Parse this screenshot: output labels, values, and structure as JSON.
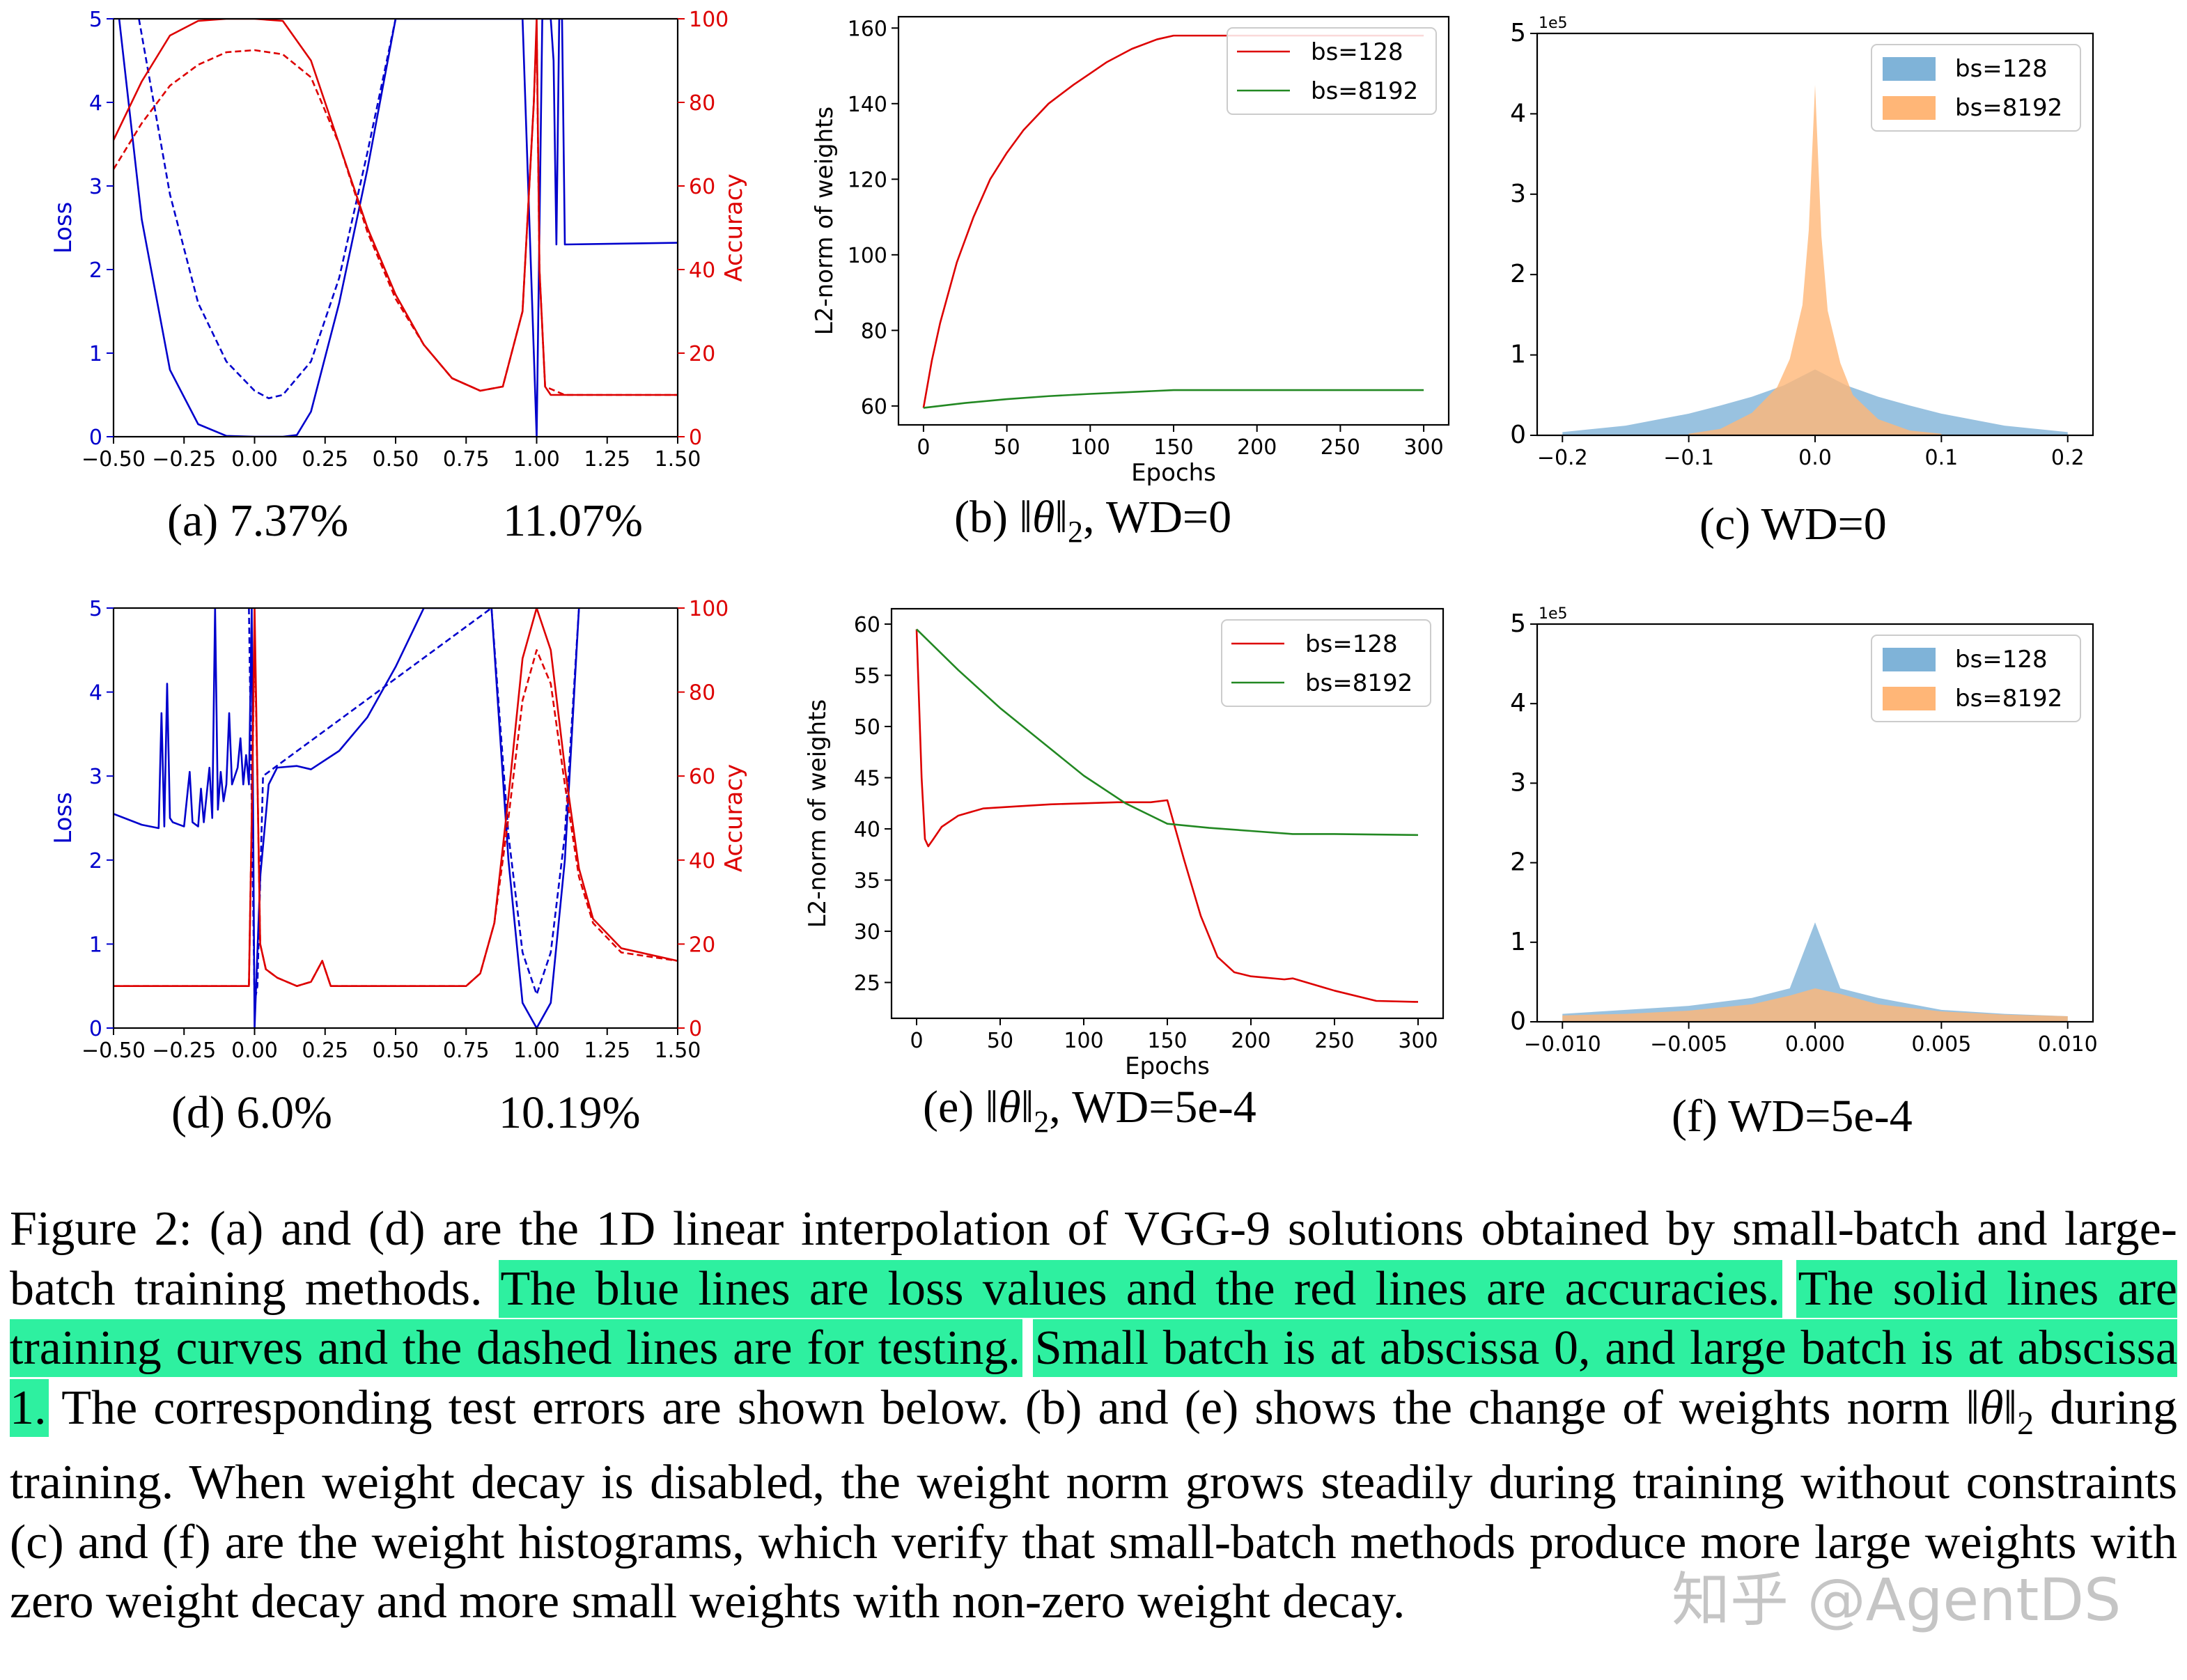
{
  "figure": {
    "panels": {
      "a": {
        "label": "(a) 7.37%",
        "label_left": "(a)",
        "err_small": "7.37%",
        "err_large": "11.07%"
      },
      "b": {
        "label": "(b) ||θ||₂, WD=0",
        "prefix": "(b)",
        "math": "‖θ‖",
        "sub": "2",
        "suffix": ", WD=0"
      },
      "c": {
        "label": "(c) WD=0"
      },
      "d": {
        "label": "(d) 6.0%",
        "label_left": "(d)",
        "err_small": "6.0%",
        "err_large": "10.19%"
      },
      "e": {
        "label": "(e) ||θ||₂, WD=5e-4",
        "prefix": "(e)",
        "math": "‖θ‖",
        "sub": "2",
        "suffix": ", WD=5e-4"
      },
      "f": {
        "label": "(f) WD=5e-4"
      }
    },
    "caption": {
      "p1": "Figure 2: (a) and (d) are the 1D linear interpolation of VGG-9 solutions obtained by small-batch and large-batch training methods. ",
      "h1": "The blue lines are loss values and the red lines are accuracies.",
      "sp1": " ",
      "h2": "The solid lines are training curves and the dashed lines are for testing.",
      "sp2": " ",
      "h3": "Small batch is at abscissa 0, and large batch is at abscissa 1.",
      "p2": " The corresponding test errors are shown below. (b) and (e) shows the change of weights norm ",
      "norm": "‖θ‖",
      "norm_sub": "2",
      "p3": " during training. When weight decay is disabled, the weight norm grows steadily during training without constraints (c) and (f) are the weight histograms, which verify that small-batch methods produce more large weights with zero weight decay and more small weights with non-zero weight decay."
    },
    "watermark": "知乎 @AgentDS"
  },
  "chart_data": [
    {
      "id": "a",
      "type": "line",
      "title": "(a) 7.37%   11.07%",
      "xlabel": "",
      "ylabel": "Loss",
      "ylabel_right": "Accuracy",
      "xlim": [
        -0.5,
        1.5
      ],
      "ylim": [
        0,
        5
      ],
      "ylim_right": [
        0,
        100
      ],
      "xticks": [
        "-0.50",
        "-0.25",
        "0.00",
        "0.25",
        "0.50",
        "0.75",
        "1.00",
        "1.25",
        "1.50"
      ],
      "yticks": [
        "0",
        "1",
        "2",
        "3",
        "4",
        "5"
      ],
      "yticks_right": [
        "0",
        "20",
        "40",
        "60",
        "80",
        "100"
      ],
      "series": [
        {
          "name": "train loss",
          "color": "#0000cc",
          "style": "solid",
          "axis": "left",
          "x": [
            -0.48,
            -0.4,
            -0.3,
            -0.2,
            -0.1,
            0.0,
            0.1,
            0.15,
            0.2,
            0.3,
            0.4,
            0.5,
            0.95,
            0.98,
            1.0,
            1.02,
            1.05,
            1.06,
            1.07,
            1.08,
            1.09,
            1.1,
            1.5
          ],
          "y": [
            5.0,
            2.6,
            0.8,
            0.15,
            0.01,
            0.0,
            0.0,
            0.02,
            0.3,
            1.6,
            3.2,
            5.0,
            5.0,
            2.0,
            0.0,
            5.0,
            5.0,
            4.5,
            2.3,
            5.0,
            5.0,
            2.3,
            2.32
          ]
        },
        {
          "name": "test loss",
          "color": "#0000cc",
          "style": "dashed",
          "axis": "left",
          "x": [
            -0.41,
            -0.3,
            -0.2,
            -0.1,
            0.0,
            0.05,
            0.1,
            0.2,
            0.3,
            0.4,
            0.5
          ],
          "y": [
            5.0,
            2.9,
            1.6,
            0.9,
            0.55,
            0.46,
            0.5,
            0.9,
            1.9,
            3.4,
            5.0
          ]
        },
        {
          "name": "train accuracy",
          "color": "#dd0000",
          "style": "solid",
          "axis": "right",
          "x": [
            -0.5,
            -0.4,
            -0.3,
            -0.2,
            -0.1,
            0.0,
            0.1,
            0.2,
            0.3,
            0.4,
            0.5,
            0.6,
            0.7,
            0.8,
            0.88,
            0.95,
            0.99,
            1.0,
            1.01,
            1.03,
            1.05,
            1.1,
            1.5
          ],
          "y": [
            71,
            85,
            96,
            99.5,
            100,
            100,
            99.5,
            90,
            70,
            50,
            34,
            22,
            14,
            11,
            12,
            30,
            80,
            100,
            40,
            12,
            10,
            10,
            10
          ]
        },
        {
          "name": "test accuracy",
          "color": "#dd0000",
          "style": "dashed",
          "axis": "right",
          "x": [
            -0.5,
            -0.4,
            -0.3,
            -0.2,
            -0.1,
            0.0,
            0.1,
            0.2,
            0.3,
            0.4,
            0.5,
            0.6,
            0.7,
            0.8,
            0.88,
            0.95,
            0.99,
            1.0,
            1.01,
            1.03,
            1.1,
            1.5
          ],
          "y": [
            64,
            75,
            84,
            89,
            92,
            92.5,
            91.5,
            86,
            70,
            49,
            33,
            22,
            14,
            11,
            12,
            30,
            80,
            98,
            40,
            12,
            10,
            10
          ]
        }
      ]
    },
    {
      "id": "b",
      "type": "line",
      "title": "(b) ||θ||₂, WD=0",
      "xlabel": "Epochs",
      "ylabel": "L2-norm of weights",
      "xlim": [
        -15,
        315
      ],
      "ylim": [
        55,
        163
      ],
      "xticks": [
        "0",
        "50",
        "100",
        "150",
        "200",
        "250",
        "300"
      ],
      "yticks": [
        "60",
        "80",
        "100",
        "120",
        "140",
        "160"
      ],
      "legend": [
        "bs=128",
        "bs=8192"
      ],
      "legend_position": "upper right",
      "series": [
        {
          "name": "bs=128",
          "color": "#dd0000",
          "x": [
            0,
            5,
            10,
            20,
            30,
            40,
            50,
            60,
            75,
            90,
            100,
            110,
            125,
            140,
            150,
            300
          ],
          "y": [
            59.5,
            72,
            82,
            98,
            110,
            120,
            127,
            133,
            140,
            145,
            148,
            151,
            154.5,
            157,
            158,
            158
          ]
        },
        {
          "name": "bs=8192",
          "color": "#228822",
          "x": [
            0,
            25,
            50,
            75,
            100,
            125,
            150,
            300
          ],
          "y": [
            59.5,
            60.8,
            61.8,
            62.6,
            63.2,
            63.7,
            64.2,
            64.2
          ]
        }
      ]
    },
    {
      "id": "c",
      "type": "bar",
      "title": "(c) WD=0",
      "xlabel": "",
      "ylabel": "",
      "y_scale_label": "1e5",
      "xlim": [
        -0.22,
        0.22
      ],
      "ylim": [
        0,
        5
      ],
      "xticks": [
        "-0.2",
        "-0.1",
        "0.0",
        "0.1",
        "0.2"
      ],
      "yticks": [
        "0",
        "1",
        "2",
        "3",
        "4",
        "5"
      ],
      "legend": [
        "bs=128",
        "bs=8192"
      ],
      "legend_position": "upper right",
      "series": [
        {
          "name": "bs=128",
          "color": "#7fb3d8",
          "x": [
            -0.2,
            -0.15,
            -0.1,
            -0.075,
            -0.05,
            -0.025,
            0.0,
            0.025,
            0.05,
            0.075,
            0.1,
            0.15,
            0.2
          ],
          "values": [
            0.04,
            0.12,
            0.27,
            0.37,
            0.48,
            0.62,
            0.82,
            0.62,
            0.48,
            0.37,
            0.27,
            0.12,
            0.04
          ]
        },
        {
          "name": "bs=8192",
          "color": "#ffb677",
          "x": [
            -0.1,
            -0.075,
            -0.05,
            -0.03,
            -0.02,
            -0.01,
            -0.005,
            0.0,
            0.005,
            0.01,
            0.02,
            0.03,
            0.05,
            0.075,
            0.1
          ],
          "values": [
            0.02,
            0.08,
            0.28,
            0.6,
            0.95,
            1.62,
            2.55,
            4.36,
            2.48,
            1.55,
            0.9,
            0.5,
            0.2,
            0.06,
            0.02
          ]
        }
      ]
    },
    {
      "id": "d",
      "type": "line",
      "title": "(d) 6.0%   10.19%",
      "xlabel": "",
      "ylabel": "Loss",
      "ylabel_right": "Accuracy",
      "xlim": [
        -0.5,
        1.5
      ],
      "ylim": [
        0,
        5
      ],
      "ylim_right": [
        0,
        100
      ],
      "xticks": [
        "-0.50",
        "-0.25",
        "0.00",
        "0.25",
        "0.50",
        "0.75",
        "1.00",
        "1.25",
        "1.50"
      ],
      "yticks": [
        "0",
        "1",
        "2",
        "3",
        "4",
        "5"
      ],
      "yticks_right": [
        "0",
        "20",
        "40",
        "60",
        "80",
        "100"
      ],
      "series": [
        {
          "name": "train loss",
          "color": "#0000cc",
          "style": "solid",
          "axis": "left",
          "x": [
            -0.5,
            -0.4,
            -0.34,
            -0.33,
            -0.32,
            -0.31,
            -0.3,
            -0.29,
            -0.25,
            -0.23,
            -0.22,
            -0.2,
            -0.19,
            -0.18,
            -0.16,
            -0.15,
            -0.14,
            -0.13,
            -0.12,
            -0.11,
            -0.1,
            -0.09,
            -0.08,
            -0.06,
            -0.05,
            -0.04,
            -0.03,
            -0.02,
            -0.01,
            0.0,
            0.02,
            0.05,
            0.08,
            0.15,
            0.2,
            0.3,
            0.4,
            0.5,
            0.6,
            0.84,
            0.9,
            0.95,
            1.0,
            1.05,
            1.1,
            1.15
          ],
          "y": [
            2.55,
            2.42,
            2.38,
            3.75,
            2.4,
            4.1,
            2.5,
            2.45,
            2.4,
            3.05,
            2.45,
            2.4,
            2.85,
            2.45,
            3.1,
            2.5,
            5.0,
            2.6,
            3.05,
            2.7,
            2.9,
            3.75,
            2.9,
            3.1,
            3.45,
            2.9,
            3.25,
            2.9,
            5.0,
            0.0,
            1.8,
            2.9,
            3.1,
            3.12,
            3.08,
            3.3,
            3.7,
            4.3,
            5.0,
            5.0,
            2.0,
            0.3,
            0.0,
            0.3,
            2.0,
            5.0
          ]
        },
        {
          "name": "test loss",
          "color": "#0000cc",
          "style": "dashed",
          "axis": "left",
          "x": [
            -0.02,
            0.0,
            0.01,
            0.03,
            0.84,
            0.9,
            0.95,
            1.0,
            1.05,
            1.1,
            1.15
          ],
          "y": [
            5.0,
            0.3,
            0.5,
            3.0,
            5.0,
            2.3,
            0.9,
            0.4,
            0.9,
            2.3,
            5.0
          ]
        },
        {
          "name": "train accuracy",
          "color": "#dd0000",
          "style": "solid",
          "axis": "right",
          "x": [
            -0.5,
            -0.02,
            -0.01,
            0.0,
            0.01,
            0.02,
            0.04,
            0.08,
            0.15,
            0.2,
            0.24,
            0.27,
            0.3,
            0.5,
            0.75,
            0.8,
            0.85,
            0.9,
            0.95,
            1.0,
            1.05,
            1.1,
            1.15,
            1.2,
            1.3,
            1.5
          ],
          "y": [
            10,
            10,
            50,
            100,
            60,
            20,
            14,
            12,
            10,
            11,
            16,
            10,
            10,
            10,
            10,
            13,
            25,
            55,
            88,
            100,
            90,
            62,
            38,
            26,
            19,
            16
          ]
        },
        {
          "name": "test accuracy",
          "color": "#dd0000",
          "style": "dashed",
          "axis": "right",
          "x": [
            -0.5,
            -0.02,
            -0.01,
            0.0,
            0.01,
            0.02,
            0.04,
            0.08,
            0.15,
            0.2,
            0.24,
            0.27,
            0.3,
            0.5,
            0.75,
            0.8,
            0.85,
            0.9,
            0.95,
            1.0,
            1.05,
            1.1,
            1.15,
            1.2,
            1.3,
            1.5
          ],
          "y": [
            10,
            10,
            50,
            94,
            60,
            20,
            14,
            12,
            10,
            11,
            16,
            10,
            10,
            10,
            10,
            13,
            25,
            50,
            78,
            90,
            82,
            58,
            36,
            25,
            18,
            16
          ]
        }
      ]
    },
    {
      "id": "e",
      "type": "line",
      "title": "(e) ||θ||₂, WD=5e-4",
      "xlabel": "Epochs",
      "ylabel": "L2-norm of weights",
      "xlim": [
        -15,
        315
      ],
      "ylim": [
        21.5,
        61.5
      ],
      "xticks": [
        "0",
        "50",
        "100",
        "150",
        "200",
        "250",
        "300"
      ],
      "yticks": [
        "25",
        "30",
        "35",
        "40",
        "45",
        "50",
        "55",
        "60"
      ],
      "legend": [
        "bs=128",
        "bs=8192"
      ],
      "legend_position": "upper right",
      "series": [
        {
          "name": "bs=128",
          "color": "#dd0000",
          "x": [
            0,
            3,
            5,
            7,
            10,
            15,
            25,
            40,
            60,
            80,
            100,
            120,
            140,
            150,
            160,
            170,
            180,
            190,
            200,
            220,
            225,
            250,
            275,
            300
          ],
          "y": [
            59.5,
            45,
            39,
            38.3,
            39,
            40.2,
            41.3,
            42,
            42.2,
            42.4,
            42.5,
            42.6,
            42.6,
            42.8,
            37,
            31.5,
            27.5,
            26,
            25.6,
            25.3,
            25.4,
            24.2,
            23.2,
            23.1
          ]
        },
        {
          "name": "bs=8192",
          "color": "#228822",
          "x": [
            0,
            25,
            50,
            75,
            100,
            125,
            150,
            175,
            200,
            225,
            250,
            300
          ],
          "y": [
            59.5,
            55.5,
            51.8,
            48.5,
            45.2,
            42.5,
            40.5,
            40.1,
            39.8,
            39.5,
            39.5,
            39.4
          ]
        }
      ]
    },
    {
      "id": "f",
      "type": "bar",
      "title": "(f) WD=5e-4",
      "xlabel": "",
      "ylabel": "",
      "y_scale_label": "1e5",
      "xlim": [
        -0.011,
        0.011
      ],
      "ylim": [
        0,
        5
      ],
      "xticks": [
        "-0.010",
        "-0.005",
        "0.000",
        "0.005",
        "0.010"
      ],
      "yticks": [
        "0",
        "1",
        "2",
        "3",
        "4",
        "5"
      ],
      "legend": [
        "bs=128",
        "bs=8192"
      ],
      "legend_position": "upper right",
      "series": [
        {
          "name": "bs=128",
          "color": "#7fb3d8",
          "x": [
            -0.01,
            -0.0075,
            -0.005,
            -0.0025,
            -0.001,
            0.0,
            0.001,
            0.0025,
            0.005,
            0.0075,
            0.01
          ],
          "values": [
            0.1,
            0.15,
            0.2,
            0.3,
            0.42,
            1.25,
            0.42,
            0.3,
            0.15,
            0.1,
            0.07
          ]
        },
        {
          "name": "bs=8192",
          "color": "#ffb677",
          "x": [
            -0.01,
            -0.0075,
            -0.005,
            -0.0025,
            -0.001,
            0.0,
            0.001,
            0.0025,
            0.005,
            0.0075,
            0.01
          ],
          "values": [
            0.08,
            0.1,
            0.14,
            0.22,
            0.33,
            0.42,
            0.35,
            0.22,
            0.13,
            0.09,
            0.07
          ]
        }
      ]
    }
  ]
}
